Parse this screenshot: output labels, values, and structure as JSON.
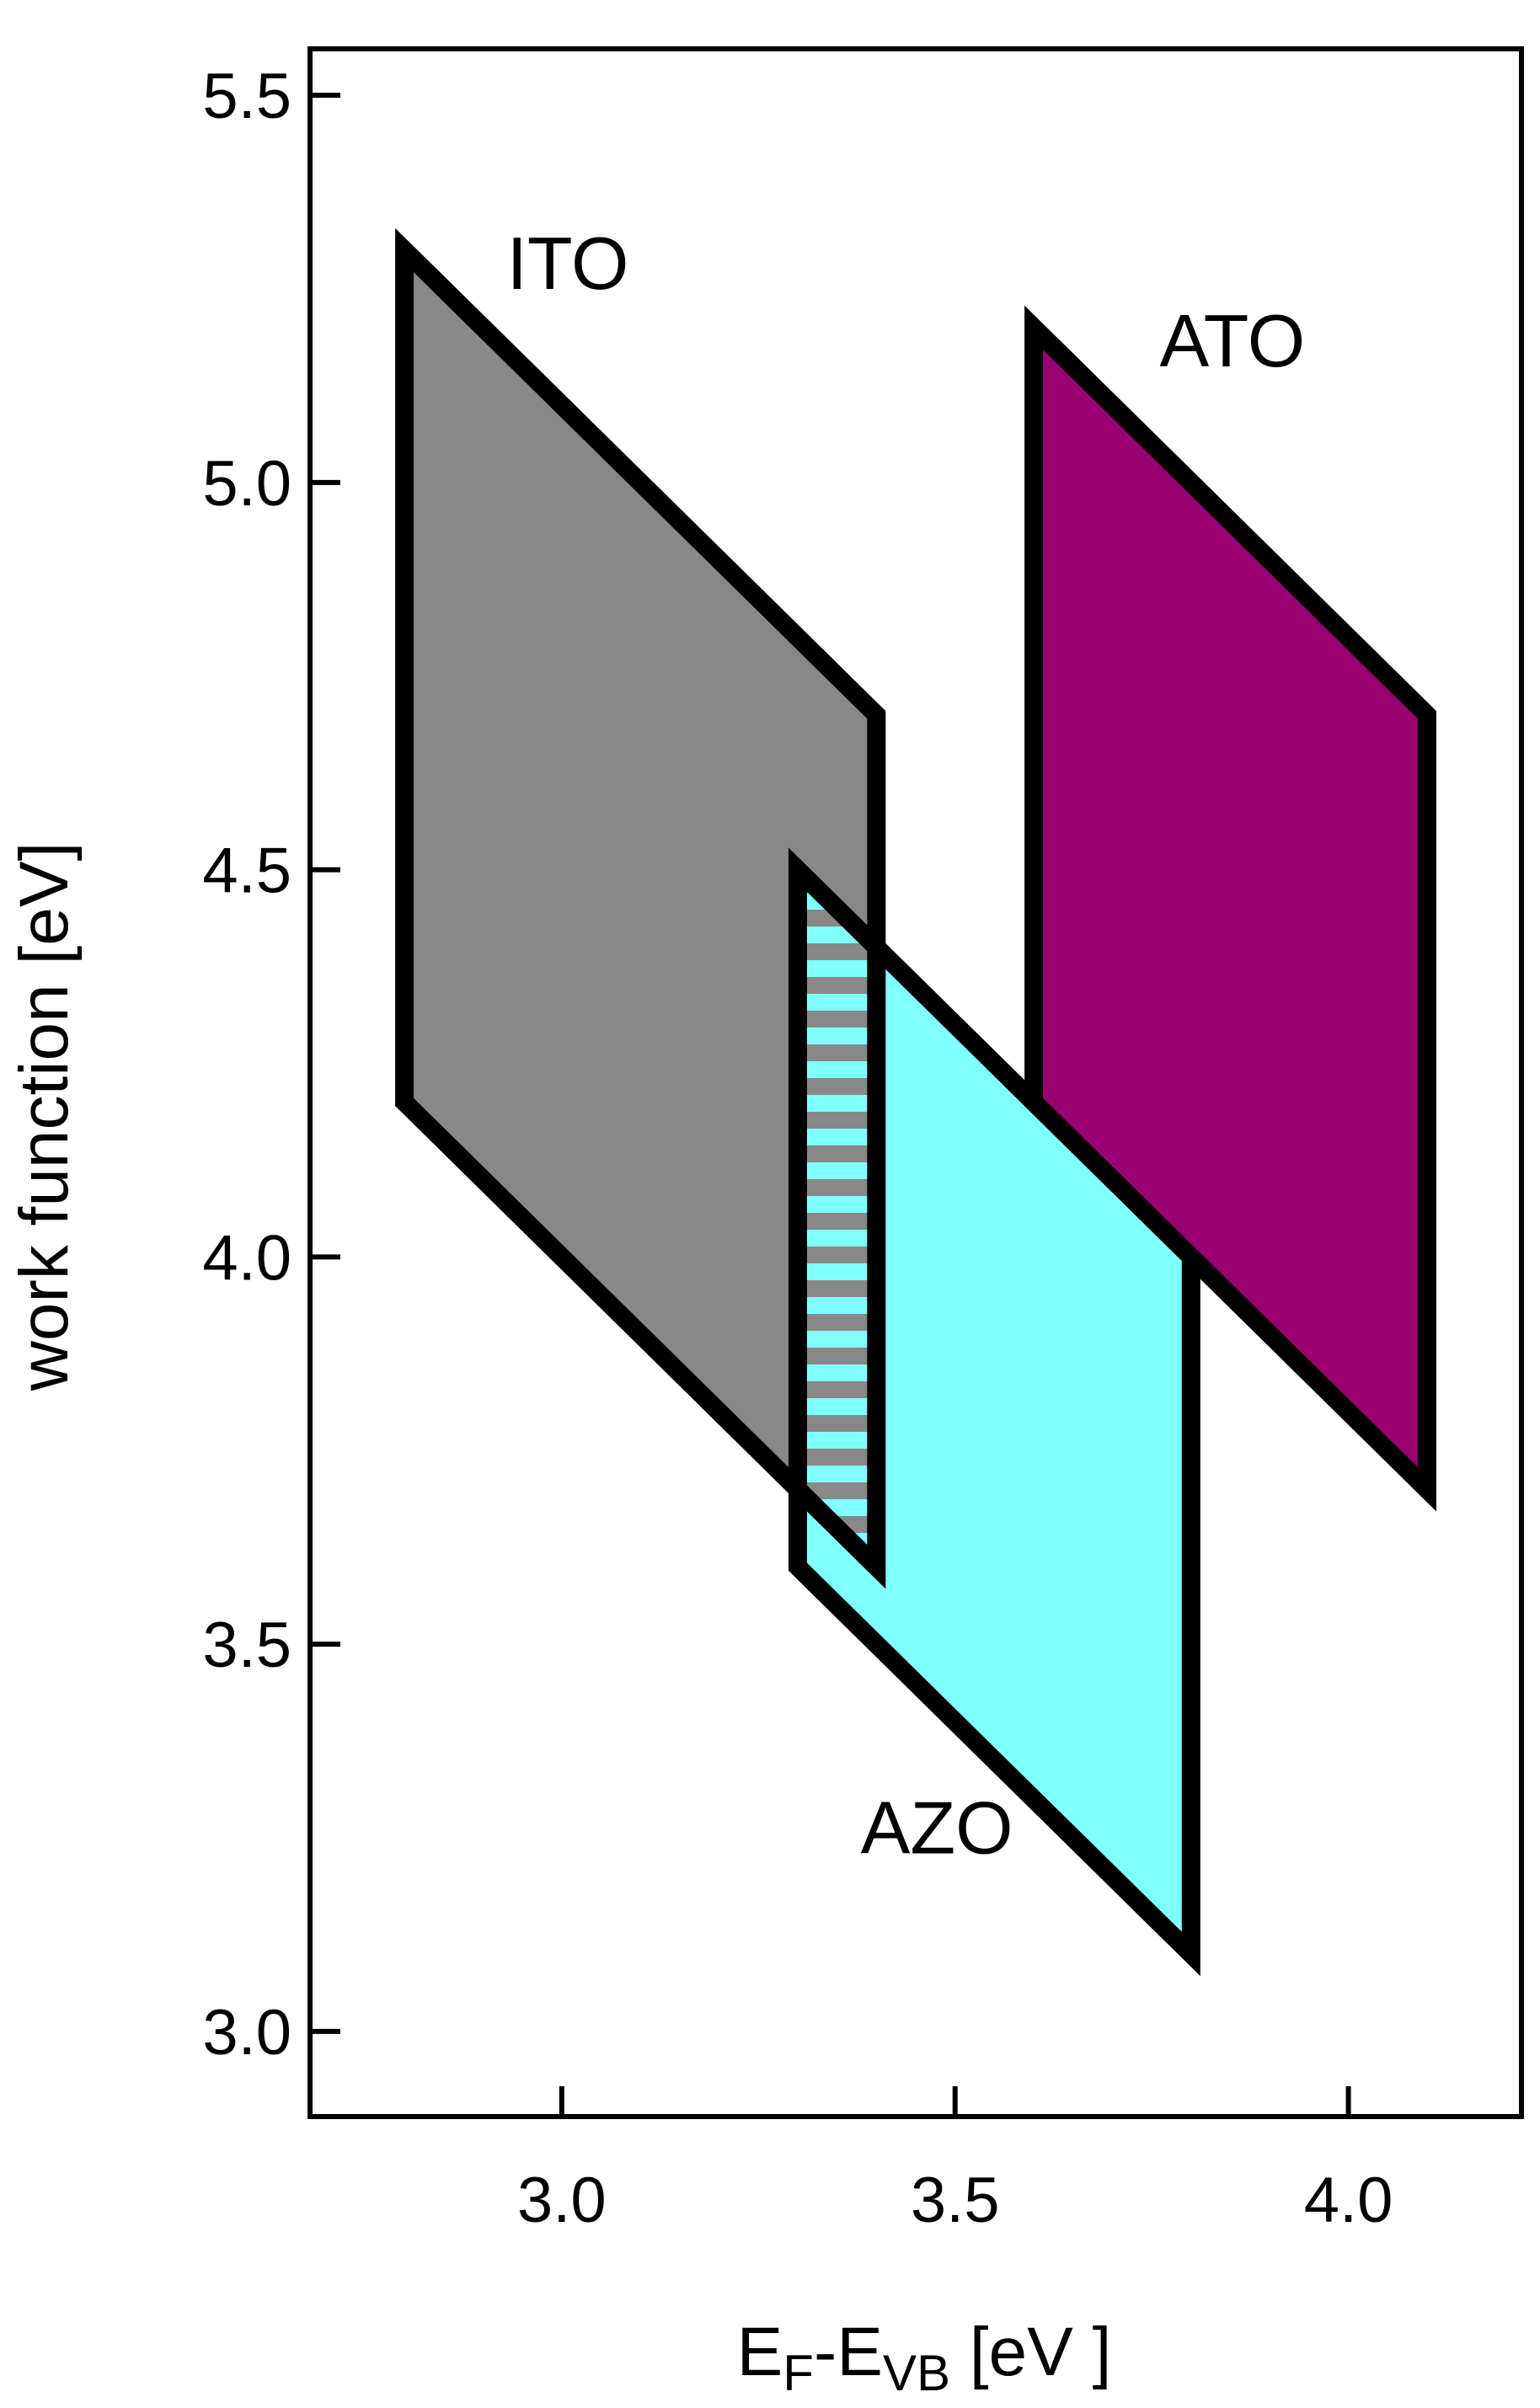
{
  "chart_data": {
    "type": "area",
    "xlabel": "E",
    "xlabel_parts": {
      "base1": "E",
      "sub1": "F",
      "mid": "-E",
      "sub2": "VB",
      "unit": " [eV ]"
    },
    "ylabel": "work function [eV]",
    "xlim": [
      2.68,
      4.22
    ],
    "ylim": [
      2.89,
      5.56
    ],
    "xticks": [
      3.0,
      3.5,
      4.0
    ],
    "xtick_labels": [
      "3.0",
      "3.5",
      "4.0"
    ],
    "yticks": [
      3.0,
      3.5,
      4.0,
      4.5,
      5.0,
      5.5
    ],
    "ytick_labels": [
      "3.0",
      "3.5",
      "4.0",
      "4.5",
      "5.0",
      "5.5"
    ],
    "grid": false,
    "series": [
      {
        "name": "ITO",
        "color": "#888888",
        "polygon": [
          [
            2.8,
            5.3
          ],
          [
            3.4,
            4.7
          ],
          [
            3.4,
            3.6
          ],
          [
            2.8,
            4.2
          ]
        ],
        "label_at": [
          2.93,
          5.25
        ]
      },
      {
        "name": "ATO",
        "color": "#990070",
        "polygon": [
          [
            3.6,
            5.2
          ],
          [
            4.1,
            4.7
          ],
          [
            4.1,
            3.7
          ],
          [
            3.6,
            4.2
          ]
        ],
        "label_at": [
          3.76,
          5.15
        ]
      },
      {
        "name": "AZO",
        "color": "#80ffff",
        "polygon": [
          [
            3.3,
            4.5
          ],
          [
            3.8,
            4.0
          ],
          [
            3.8,
            3.1
          ],
          [
            3.3,
            3.6
          ]
        ],
        "label_at": [
          3.38,
          3.23
        ]
      }
    ],
    "overlap": {
      "pattern": "horizontal-stripes",
      "colors": [
        "#888888",
        "#80ffff"
      ]
    }
  }
}
